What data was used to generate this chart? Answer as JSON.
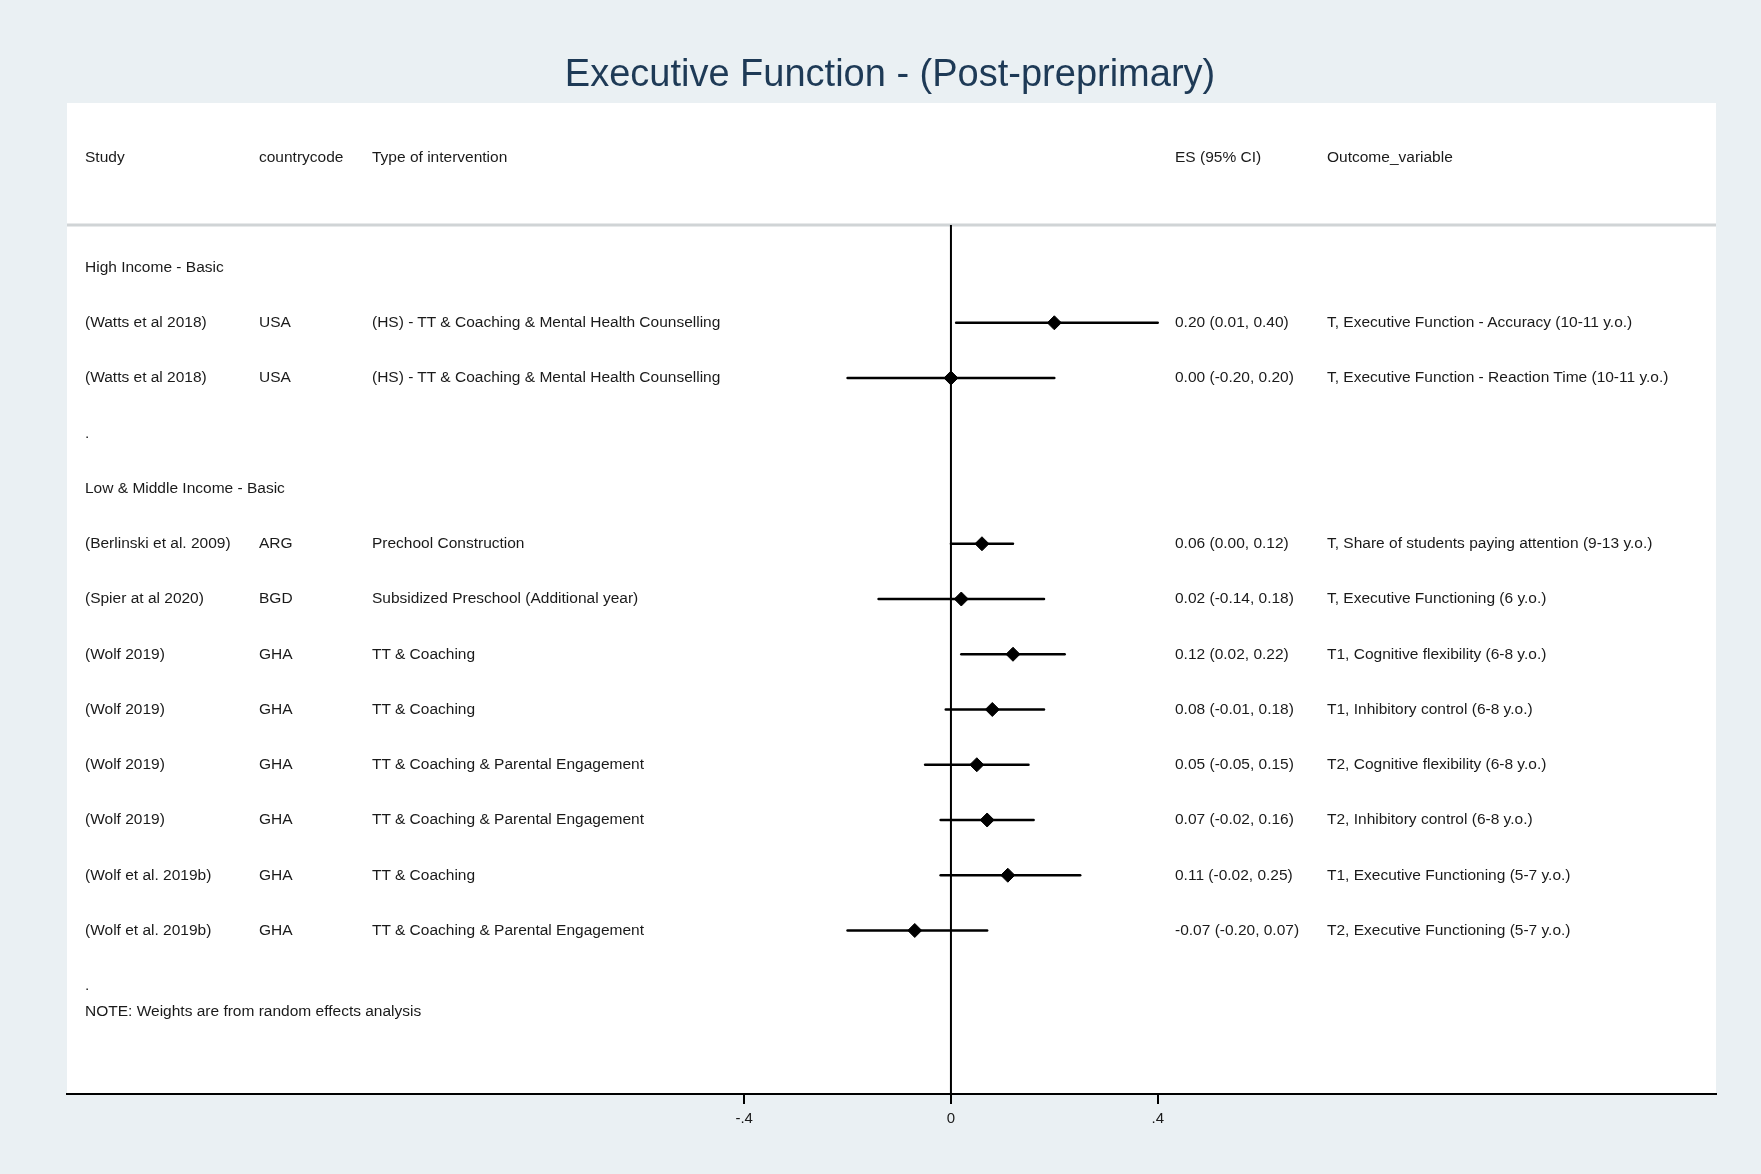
{
  "chart_data": {
    "type": "scatter",
    "orientation": "horizontal",
    "title": "Executive Function - (Post-preprimary)",
    "categories": [
      "High Income - Basic",
      "(Watts et al 2018)",
      "(Watts et al 2018)",
      ".",
      "Low & Middle Income - Basic",
      "(Berlinski et al. 2009)",
      "(Spier at al 2020)",
      "(Wolf 2019)",
      "(Wolf 2019)",
      "(Wolf 2019)",
      "(Wolf 2019)",
      "(Wolf et al. 2019b)",
      "(Wolf et al. 2019b)",
      "."
    ],
    "values": [
      null,
      0.2,
      0.0,
      null,
      null,
      0.06,
      0.02,
      0.12,
      0.08,
      0.05,
      0.07,
      0.11,
      -0.07,
      null
    ],
    "errors": [
      null,
      [
        0.01,
        0.4
      ],
      [
        -0.2,
        0.2
      ],
      null,
      null,
      [
        0.0,
        0.12
      ],
      [
        -0.14,
        0.18
      ],
      [
        0.02,
        0.22
      ],
      [
        -0.01,
        0.18
      ],
      [
        -0.05,
        0.15
      ],
      [
        -0.02,
        0.16
      ],
      [
        -0.02,
        0.25
      ],
      [
        -0.2,
        0.07
      ],
      null
    ],
    "color": "#000000",
    "marker": "diamond",
    "legend": false,
    "grid": false,
    "xlim": [
      -1.71,
      1.48
    ],
    "xticks": [
      {
        "value": -0.4,
        "label": "-.4"
      },
      0,
      {
        "value": 0.4,
        "label": ".4"
      }
    ],
    "ref_lines": [
      {
        "axis": "x",
        "value": 0,
        "color": "#000000"
      }
    ],
    "annotations": [
      "Study",
      "countrycode",
      "Type of intervention",
      "ES (95% CI)",
      "Outcome_variable",
      "USA",
      "(HS) - TT & Coaching & Mental Health Counselling",
      "0.20 (0.01, 0.40)",
      "T, Executive Function - Accuracy (10-11 y.o.)",
      "USA",
      "(HS) - TT & Coaching & Mental Health Counselling",
      "0.00 (-0.20, 0.20)",
      "T, Executive Function - Reaction Time (10-11 y.o.)",
      "ARG",
      "Prechool Construction",
      "0.06 (0.00, 0.12)",
      "T, Share of students paying attention (9-13 y.o.)",
      "BGD",
      "Subsidized Preschool (Additional year)",
      "0.02 (-0.14, 0.18)",
      "T, Executive Functioning (6 y.o.)",
      "GHA",
      "TT & Coaching",
      "0.12 (0.02, 0.22)",
      "T1, Cognitive flexibility (6-8 y.o.)",
      "GHA",
      "TT & Coaching",
      "0.08 (-0.01, 0.18)",
      "T1, Inhibitory control (6-8 y.o.)",
      "GHA",
      "TT & Coaching & Parental Engagement",
      "0.05 (-0.05, 0.15)",
      "T2, Cognitive flexibility (6-8 y.o.)",
      "GHA",
      "TT & Coaching & Parental Engagement",
      "0.07 (-0.02, 0.16)",
      "T2, Inhibitory control (6-8 y.o.)",
      "GHA",
      "TT & Coaching",
      "0.11 (-0.02, 0.25)",
      "T1, Executive Functioning (5-7 y.o.)",
      "GHA",
      "TT & Coaching & Parental Engagement",
      "-0.07 (-0.20, 0.07)",
      "T2, Executive Functioning (5-7 y.o.)",
      "NOTE: Weights are from random effects analysis"
    ]
  }
}
